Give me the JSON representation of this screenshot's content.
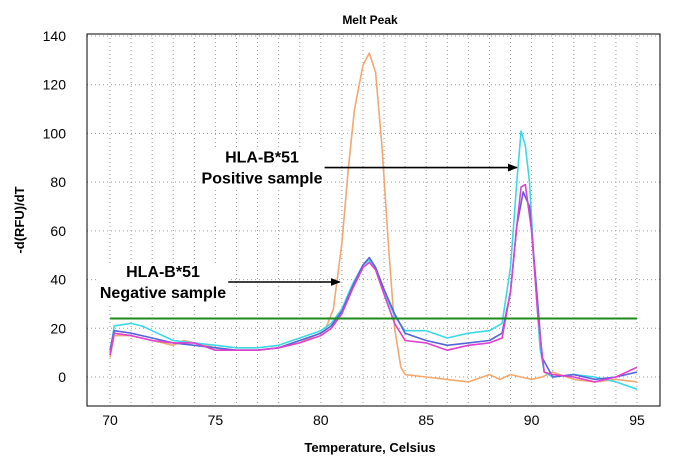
{
  "chart_data": {
    "type": "line",
    "title": "Melt Peak",
    "xlabel": "Temperature, Celsius",
    "ylabel": "-d(RFU)/dT",
    "xlim": [
      70,
      95
    ],
    "ylim": [
      -5,
      140
    ],
    "xticks": [
      70,
      75,
      80,
      85,
      90,
      95
    ],
    "yticks": [
      0,
      20,
      40,
      60,
      80,
      100,
      120,
      140
    ],
    "grid": true,
    "threshold": {
      "y": 24,
      "color": "#1e8a1e"
    },
    "series": [
      {
        "color": "#f2a870",
        "points": [
          [
            70,
            8
          ],
          [
            70.2,
            17
          ],
          [
            71,
            17
          ],
          [
            72,
            15
          ],
          [
            73,
            13
          ],
          [
            73.5,
            15
          ],
          [
            74,
            14
          ],
          [
            75,
            12
          ],
          [
            76,
            11
          ],
          [
            77,
            11
          ],
          [
            78,
            12
          ],
          [
            79,
            14
          ],
          [
            79.7,
            17
          ],
          [
            80.2,
            19
          ],
          [
            80.6,
            28
          ],
          [
            81,
            55
          ],
          [
            81.3,
            85
          ],
          [
            81.6,
            110
          ],
          [
            82,
            128
          ],
          [
            82.3,
            133
          ],
          [
            82.6,
            125
          ],
          [
            82.9,
            95
          ],
          [
            83.2,
            55
          ],
          [
            83.5,
            20
          ],
          [
            83.8,
            4
          ],
          [
            84,
            1
          ],
          [
            85,
            0
          ],
          [
            86,
            -1
          ],
          [
            87,
            -2
          ],
          [
            88,
            1
          ],
          [
            88.5,
            -1
          ],
          [
            89,
            1
          ],
          [
            89.5,
            0
          ],
          [
            90,
            -1
          ],
          [
            90.5,
            0
          ],
          [
            91,
            2
          ],
          [
            92,
            -1
          ],
          [
            93,
            -2
          ],
          [
            94,
            -1
          ],
          [
            95,
            -2
          ]
        ]
      },
      {
        "color": "#3cd8e6",
        "points": [
          [
            70,
            10
          ],
          [
            70.2,
            21
          ],
          [
            71,
            22
          ],
          [
            71.5,
            21
          ],
          [
            72,
            19
          ],
          [
            73,
            15
          ],
          [
            74,
            14
          ],
          [
            75,
            13
          ],
          [
            76,
            12
          ],
          [
            77,
            12
          ],
          [
            78,
            13
          ],
          [
            79,
            16
          ],
          [
            80,
            19
          ],
          [
            80.5,
            22
          ],
          [
            81,
            28
          ],
          [
            81.5,
            38
          ],
          [
            82,
            46
          ],
          [
            82.3,
            48
          ],
          [
            82.6,
            44
          ],
          [
            83,
            35
          ],
          [
            83.5,
            25
          ],
          [
            84,
            19
          ],
          [
            85,
            19
          ],
          [
            86,
            16
          ],
          [
            87,
            18
          ],
          [
            88,
            19
          ],
          [
            88.6,
            22
          ],
          [
            89,
            45
          ],
          [
            89.3,
            80
          ],
          [
            89.5,
            101
          ],
          [
            89.7,
            95
          ],
          [
            89.9,
            80
          ],
          [
            90.1,
            50
          ],
          [
            90.4,
            12
          ],
          [
            90.6,
            2
          ],
          [
            91,
            0
          ],
          [
            92,
            1
          ],
          [
            93,
            0
          ],
          [
            94,
            -2
          ],
          [
            95,
            -5
          ]
        ]
      },
      {
        "color": "#5565d8",
        "points": [
          [
            70,
            11
          ],
          [
            70.2,
            19
          ],
          [
            71,
            18
          ],
          [
            72,
            16
          ],
          [
            73,
            14
          ],
          [
            74,
            13
          ],
          [
            75,
            12
          ],
          [
            76,
            11
          ],
          [
            77,
            11
          ],
          [
            78,
            12
          ],
          [
            79,
            15
          ],
          [
            80,
            18
          ],
          [
            80.5,
            21
          ],
          [
            81,
            27
          ],
          [
            81.5,
            37
          ],
          [
            82,
            46
          ],
          [
            82.3,
            49
          ],
          [
            82.6,
            45
          ],
          [
            83,
            36
          ],
          [
            83.5,
            26
          ],
          [
            84,
            18
          ],
          [
            85,
            15
          ],
          [
            86,
            13
          ],
          [
            87,
            14
          ],
          [
            88,
            15
          ],
          [
            88.6,
            18
          ],
          [
            89,
            35
          ],
          [
            89.3,
            62
          ],
          [
            89.6,
            76
          ],
          [
            89.9,
            70
          ],
          [
            90.2,
            40
          ],
          [
            90.5,
            8
          ],
          [
            91,
            0
          ],
          [
            92,
            1
          ],
          [
            93,
            -1
          ],
          [
            94,
            0
          ],
          [
            95,
            2
          ]
        ]
      },
      {
        "color": "#e040d0",
        "points": [
          [
            70,
            9
          ],
          [
            70.2,
            18
          ],
          [
            71,
            17
          ],
          [
            72,
            15
          ],
          [
            73,
            14
          ],
          [
            74,
            14
          ],
          [
            75,
            11
          ],
          [
            76,
            11
          ],
          [
            77,
            11
          ],
          [
            78,
            12
          ],
          [
            79,
            14
          ],
          [
            80,
            17
          ],
          [
            80.5,
            20
          ],
          [
            81,
            26
          ],
          [
            81.5,
            36
          ],
          [
            82,
            45
          ],
          [
            82.3,
            47
          ],
          [
            82.6,
            44
          ],
          [
            83,
            34
          ],
          [
            83.5,
            22
          ],
          [
            84,
            15
          ],
          [
            85,
            14
          ],
          [
            86,
            11
          ],
          [
            87,
            13
          ],
          [
            88,
            14
          ],
          [
            88.6,
            16
          ],
          [
            89,
            35
          ],
          [
            89.3,
            62
          ],
          [
            89.5,
            78
          ],
          [
            89.7,
            79
          ],
          [
            90,
            60
          ],
          [
            90.3,
            25
          ],
          [
            90.6,
            2
          ],
          [
            91,
            1
          ],
          [
            92,
            0
          ],
          [
            93,
            -2
          ],
          [
            94,
            0
          ],
          [
            95,
            4
          ]
        ]
      }
    ],
    "annotations": [
      {
        "lines": [
          "HLA-B*51",
          "Positive sample"
        ],
        "arrow_to": [
          89.3,
          86
        ],
        "arrow_from": [
          80.4,
          86
        ]
      },
      {
        "lines": [
          "HLA-B*51",
          "Negative sample"
        ],
        "arrow_to": [
          80.9,
          39
        ],
        "arrow_from": [
          75.4,
          39
        ]
      }
    ]
  }
}
